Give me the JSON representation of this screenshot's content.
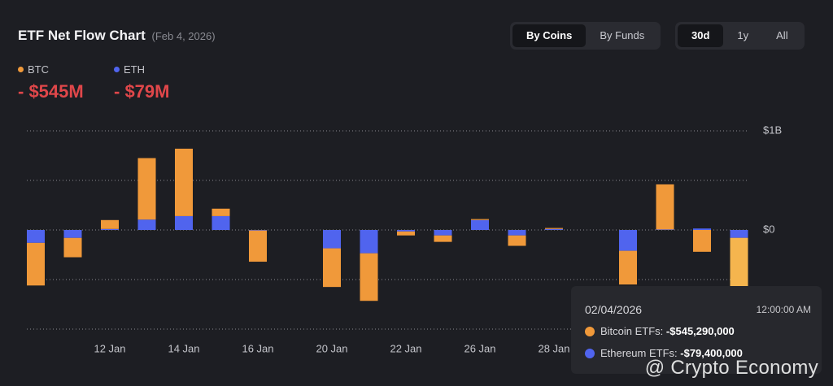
{
  "header": {
    "title": "ETF Net Flow Chart",
    "date": "(Feb 4, 2026)",
    "tabs": [
      "By Coins",
      "By Funds"
    ],
    "ranges": [
      "30d",
      "1y",
      "All"
    ]
  },
  "summary": [
    "- $545M",
    "- $79M"
  ],
  "chart_data": {
    "type": "bar",
    "stacked": true,
    "grid": true,
    "categories": [
      null,
      null,
      "12 Jan",
      null,
      "14 Jan",
      null,
      "16 Jan",
      null,
      "20 Jan",
      null,
      "22 Jan",
      null,
      "26 Jan",
      null,
      "28 Jan",
      null,
      null,
      null,
      null,
      null
    ],
    "series": [
      {
        "name": "BTC",
        "color": "#f0993a",
        "values": [
          -430000000,
          -195000000,
          90000000,
          620000000,
          680000000,
          75000000,
          -315000000,
          null,
          -390000000,
          -480000000,
          -40000000,
          -65000000,
          10000000,
          -105000000,
          10000000,
          null,
          -340000000,
          455000000,
          -220000000,
          -545290000
        ]
      },
      {
        "name": "ETH",
        "color": "#5064ee",
        "values": [
          -130000000,
          -80000000,
          10000000,
          105000000,
          140000000,
          140000000,
          -5000000,
          null,
          -185000000,
          -235000000,
          -15000000,
          -55000000,
          100000000,
          -55000000,
          10000000,
          null,
          -210000000,
          5000000,
          15000000,
          -79400000
        ]
      }
    ],
    "ylim": [
      -1000000000,
      1000000000
    ],
    "yticks": [
      {
        "value": 1000000000,
        "label": "$1B"
      },
      {
        "value": 500000000,
        "label": null
      },
      {
        "value": 0,
        "label": "$0"
      },
      {
        "value": -500000000,
        "label": null
      },
      {
        "value": -1000000000,
        "label": null
      }
    ]
  },
  "tooltip": {
    "date": "02/04/2026",
    "time": "12:00:00 AM",
    "rows": [
      {
        "label": "Bitcoin ETFs:",
        "value": "-$545,290,000"
      },
      {
        "label": "Ethereum ETFs:",
        "value": "-$79,400,000"
      }
    ]
  },
  "watermark": "@ Crypto Economy"
}
